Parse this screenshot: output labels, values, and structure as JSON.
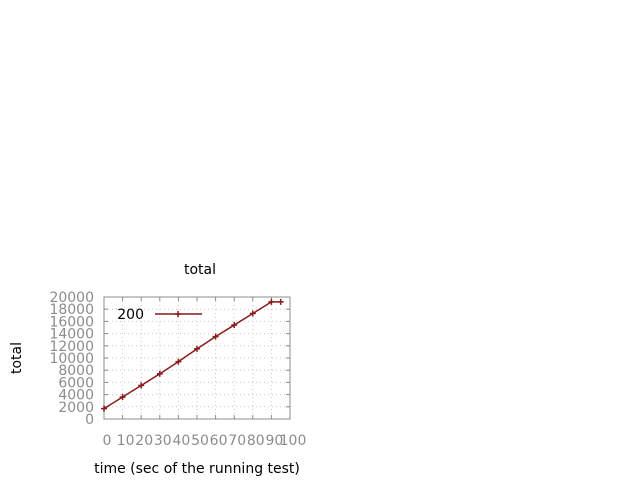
{
  "chart_data": {
    "type": "line",
    "title": "total",
    "xlabel": "time (sec of the running test)",
    "ylabel": "total",
    "xlim": [
      0,
      100
    ],
    "ylim": [
      0,
      20000
    ],
    "xticks": [
      0,
      10,
      20,
      30,
      40,
      50,
      60,
      70,
      80,
      90,
      100
    ],
    "yticks": [
      0,
      2000,
      4000,
      6000,
      8000,
      10000,
      12000,
      14000,
      16000,
      18000,
      20000
    ],
    "grid": true,
    "legend_position": "top-left",
    "series": [
      {
        "name": "200",
        "color": "#8b1a1a",
        "marker": "plus",
        "x": [
          0,
          10,
          20,
          30,
          40,
          50,
          60,
          70,
          80,
          90,
          95
        ],
        "y": [
          1700,
          3600,
          5500,
          7400,
          9400,
          11500,
          13500,
          15400,
          17300,
          19200,
          19200
        ]
      }
    ]
  }
}
